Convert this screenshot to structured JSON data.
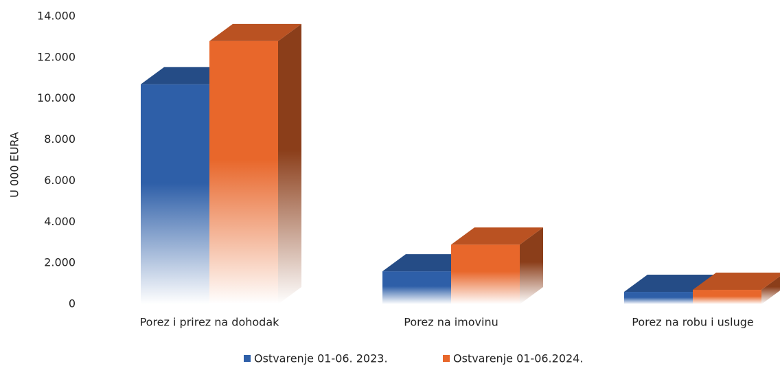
{
  "chart_data": {
    "type": "bar3d",
    "ylabel": "U 000 EURA",
    "categories": [
      "Porez i prirez na dohodak",
      "Porez na imovinu",
      "Porez na robu i usluge"
    ],
    "series": [
      {
        "name": "Ostvarenje 01-06. 2023.",
        "color": "#2e5fa8",
        "values": [
          10700,
          1600,
          600
        ]
      },
      {
        "name": "Ostvarenje 01-06.2024.",
        "color": "#e8672b",
        "values": [
          12800,
          2900,
          700
        ]
      }
    ],
    "ylim": [
      0,
      14000
    ],
    "yticks": [
      0,
      {
        "value": 2000,
        "label": "2.000"
      },
      {
        "value": 4000,
        "label": "4.000"
      },
      {
        "value": 6000,
        "label": "6.000"
      },
      {
        "value": 8000,
        "label": "8.000"
      },
      {
        "value": 10000,
        "label": "10.000"
      },
      {
        "value": 12000,
        "label": "12.000"
      },
      {
        "value": 14000,
        "label": "14.000"
      }
    ]
  }
}
